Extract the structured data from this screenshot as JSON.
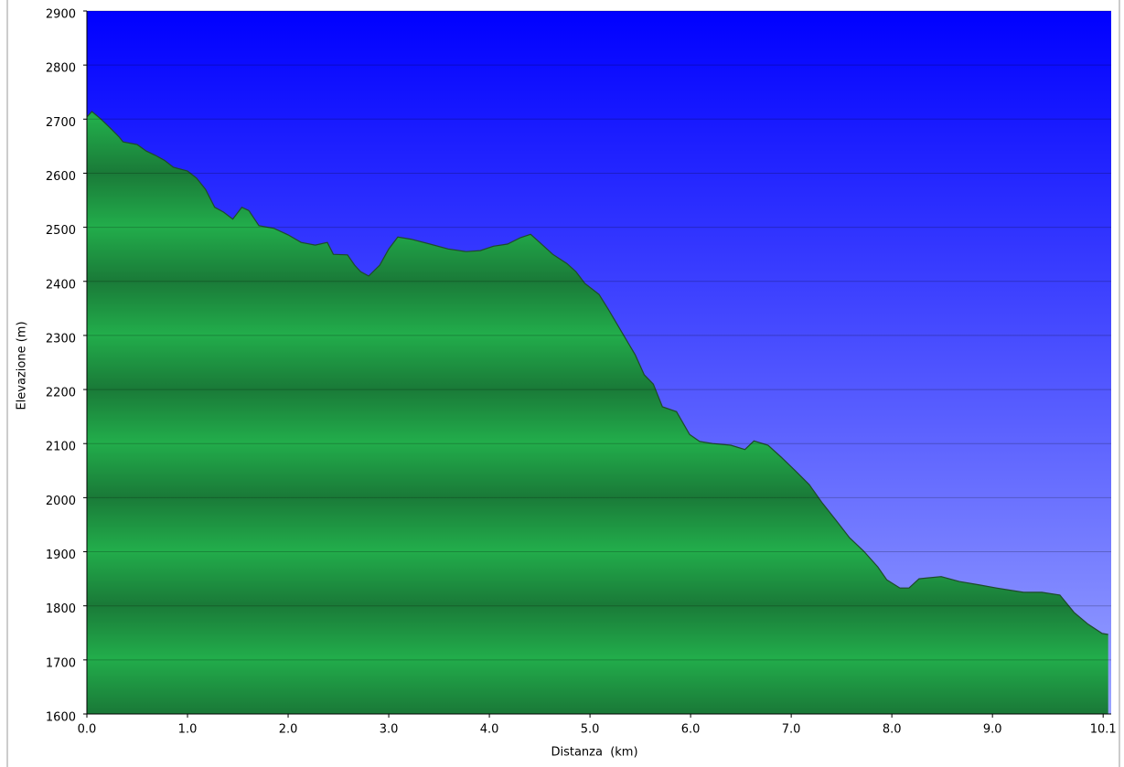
{
  "chart_data": {
    "type": "area",
    "x_label": "Distanza  (km)",
    "y_label": "Elevazione (m)",
    "x": [
      0,
      0.05,
      0.14,
      0.23,
      0.32,
      0.36,
      0.5,
      0.59,
      0.68,
      0.77,
      0.86,
      1.0,
      1.09,
      1.18,
      1.27,
      1.36,
      1.45,
      1.54,
      1.61,
      1.71,
      1.86,
      2.0,
      2.13,
      2.27,
      2.39,
      2.45,
      2.59,
      2.66,
      2.72,
      2.8,
      2.91,
      3.0,
      3.09,
      3.22,
      3.41,
      3.59,
      3.77,
      3.91,
      4.04,
      4.18,
      4.31,
      4.41,
      4.5,
      4.63,
      4.77,
      4.86,
      4.95,
      5.09,
      5.18,
      5.31,
      5.45,
      5.54,
      5.63,
      5.72,
      5.86,
      5.99,
      6.09,
      6.22,
      6.4,
      6.54,
      6.63,
      6.77,
      6.9,
      7.04,
      7.18,
      7.31,
      7.45,
      7.58,
      7.72,
      7.86,
      7.95,
      8.08,
      8.17,
      8.27,
      8.49,
      8.67,
      8.86,
      9.04,
      9.17,
      9.31,
      9.49,
      9.67,
      9.81,
      9.95,
      10.09,
      10.15
    ],
    "series": [
      {
        "name": "Elevazione",
        "color": "#22aa4c",
        "values": [
          2704,
          2714,
          2700,
          2684,
          2667,
          2658,
          2653,
          2641,
          2633,
          2624,
          2611,
          2604,
          2591,
          2570,
          2537,
          2528,
          2515,
          2537,
          2531,
          2503,
          2498,
          2486,
          2472,
          2467,
          2472,
          2450,
          2449,
          2430,
          2418,
          2410,
          2430,
          2460,
          2482,
          2478,
          2469,
          2460,
          2455,
          2457,
          2465,
          2469,
          2481,
          2487,
          2472,
          2450,
          2433,
          2418,
          2396,
          2376,
          2349,
          2308,
          2264,
          2227,
          2210,
          2168,
          2159,
          2117,
          2104,
          2100,
          2097,
          2089,
          2105,
          2097,
          2075,
          2050,
          2024,
          1990,
          1957,
          1926,
          1901,
          1872,
          1848,
          1833,
          1833,
          1850,
          1854,
          1845,
          1839,
          1833,
          1829,
          1825,
          1825,
          1820,
          1788,
          1766,
          1749,
          1747
        ]
      }
    ],
    "xlim": [
      0,
      10.18
    ],
    "xticks": [
      {
        "value": 0,
        "label": "0.0"
      },
      {
        "value": 1,
        "label": "1.0"
      },
      {
        "value": 2,
        "label": "2.0"
      },
      {
        "value": 3,
        "label": "3.0"
      },
      {
        "value": 4,
        "label": "4.0"
      },
      {
        "value": 5,
        "label": "5.0"
      },
      {
        "value": 6,
        "label": "6.0"
      },
      {
        "value": 7,
        "label": "7.0"
      },
      {
        "value": 8,
        "label": "8.0"
      },
      {
        "value": 9,
        "label": "9.0"
      },
      10.1
    ],
    "ylim": [
      1600,
      2900
    ],
    "yticks": [
      1600,
      1700,
      1800,
      1900,
      2000,
      2100,
      2200,
      2300,
      2400,
      2500,
      2600,
      2700,
      2800,
      2900
    ],
    "grid": true,
    "background_colors": [
      "#0000ff",
      "#9aa4ff"
    ]
  }
}
